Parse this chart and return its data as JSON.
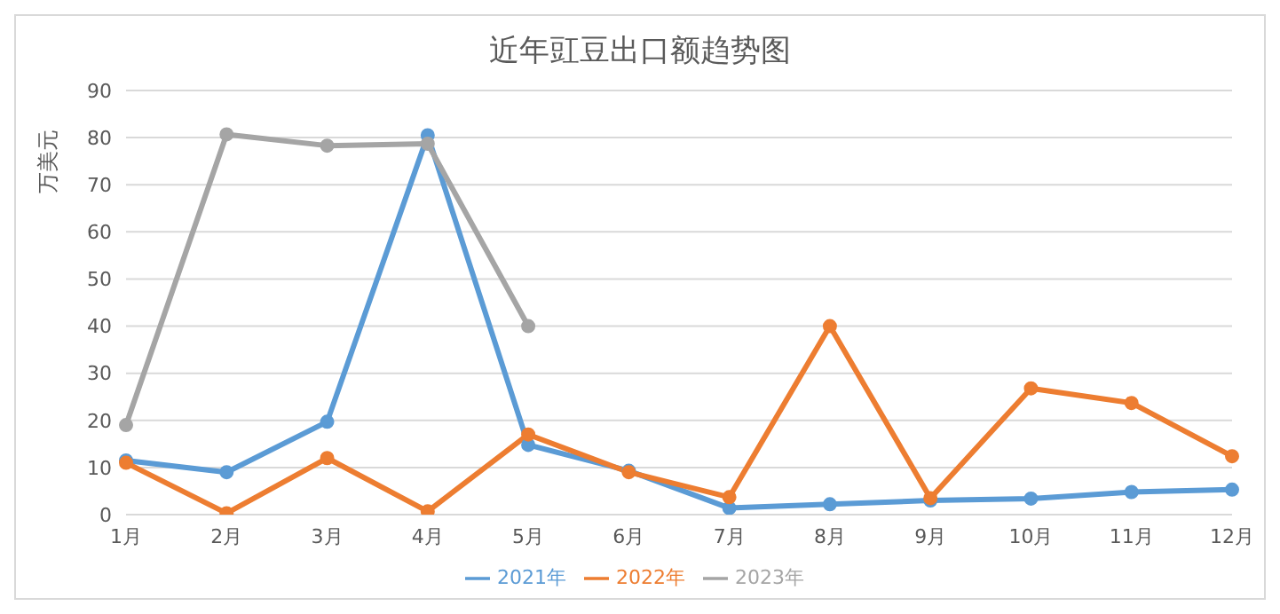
{
  "chart_data": {
    "type": "line",
    "title": "近年豇豆出口额趋势图",
    "ylabel": "万美元",
    "categories": [
      "1月",
      "2月",
      "3月",
      "4月",
      "5月",
      "6月",
      "7月",
      "8月",
      "9月",
      "10月",
      "11月",
      "12月"
    ],
    "series": [
      {
        "name": "2021年",
        "color": "#5b9bd5",
        "values": [
          11.5,
          9,
          19.7,
          80.5,
          14.8,
          9.3,
          1.4,
          2.2,
          3,
          3.4,
          4.8,
          5.3
        ]
      },
      {
        "name": "2022年",
        "color": "#ed7d31",
        "values": [
          11,
          0.3,
          12,
          0.7,
          17,
          9,
          3.7,
          40,
          3.5,
          26.8,
          23.7,
          12.4
        ]
      },
      {
        "name": "2023年",
        "color": "#a5a5a5",
        "values": [
          19,
          80.7,
          78.3,
          78.7,
          40,
          null,
          null,
          null,
          null,
          null,
          null,
          null
        ]
      }
    ],
    "ylim": [
      0,
      90
    ],
    "yticks": [
      0,
      10,
      20,
      30,
      40,
      50,
      60,
      70,
      80,
      90
    ],
    "grid": "y",
    "legend": "bottom",
    "marker": "circle",
    "line_style": "solid"
  }
}
